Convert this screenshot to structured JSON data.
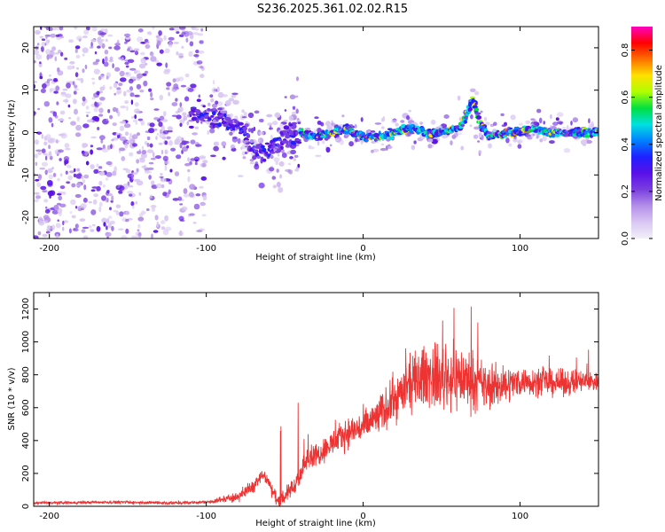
{
  "figure_title": "S236.2025.361.02.02.R15",
  "colors": {
    "snr_line": "#ee3333",
    "axis": "#000000",
    "colormap": [
      "#f2f0f8",
      "#d9c7f2",
      "#b48fe8",
      "#7a3fe0",
      "#5a10e8",
      "#2020ff",
      "#0080ff",
      "#00e0e0",
      "#00e040",
      "#b0ff00",
      "#ffe000",
      "#ff7000",
      "#ff0000",
      "#ff00c0"
    ]
  },
  "chart_data": [
    {
      "type": "heatmap",
      "title": "",
      "xlabel": "Height of straight line (km)",
      "ylabel": "Frequency (Hz)",
      "xlim": [
        -210,
        150
      ],
      "ylim": [
        -25,
        25
      ],
      "xticks": [
        -200,
        -100,
        0,
        100
      ],
      "yticks": [
        -20,
        -10,
        0,
        10,
        20
      ],
      "colorbar": {
        "label": "Normalized spectral amplitude",
        "range": [
          0.0,
          0.9
        ],
        "ticks": [
          "0.0",
          "0.2",
          "0.4",
          "0.6",
          "0.8"
        ]
      },
      "ridge": {
        "x": [
          -210,
          -140,
          -100,
          -80,
          -70,
          -60,
          -50,
          -40,
          -30,
          -20,
          -10,
          0,
          10,
          20,
          30,
          40,
          50,
          60,
          65,
          70,
          75,
          80,
          90,
          100,
          110,
          120,
          130,
          140,
          150
        ],
        "y": [
          0,
          3,
          4,
          2,
          -4,
          -5,
          -1,
          0,
          -1,
          0,
          1,
          -1,
          -1,
          0,
          1,
          0,
          0,
          1,
          3,
          8,
          2,
          -1,
          0,
          0,
          1,
          0,
          0,
          0,
          0
        ]
      }
    },
    {
      "type": "line",
      "title": "",
      "xlabel": "Height of straight line (km)",
      "ylabel": "SNR (10 * v/v)",
      "xlim": [
        -210,
        150
      ],
      "ylim": [
        0,
        1300
      ],
      "xticks": [
        -200,
        -100,
        0,
        100
      ],
      "yticks": [
        0,
        200,
        400,
        600,
        800,
        1000,
        1200
      ],
      "envelope": {
        "x": [
          -210,
          -160,
          -120,
          -100,
          -90,
          -80,
          -70,
          -65,
          -60,
          -55,
          -50,
          -40,
          -35,
          -30,
          -25,
          -20,
          -10,
          0,
          10,
          20,
          30,
          40,
          50,
          60,
          70,
          80,
          90,
          100,
          110,
          120,
          130,
          140,
          150
        ],
        "y": [
          20,
          25,
          20,
          25,
          40,
          60,
          120,
          200,
          140,
          40,
          60,
          180,
          320,
          300,
          350,
          380,
          450,
          480,
          550,
          650,
          740,
          800,
          780,
          790,
          760,
          720,
          740,
          760,
          760,
          750,
          750,
          760,
          760
        ]
      },
      "spread": {
        "x": [
          -210,
          -100,
          -70,
          -40,
          -20,
          0,
          20,
          40,
          60,
          80,
          100,
          150
        ],
        "y": [
          12,
          15,
          60,
          90,
          120,
          150,
          200,
          280,
          300,
          200,
          130,
          100
        ]
      }
    }
  ]
}
